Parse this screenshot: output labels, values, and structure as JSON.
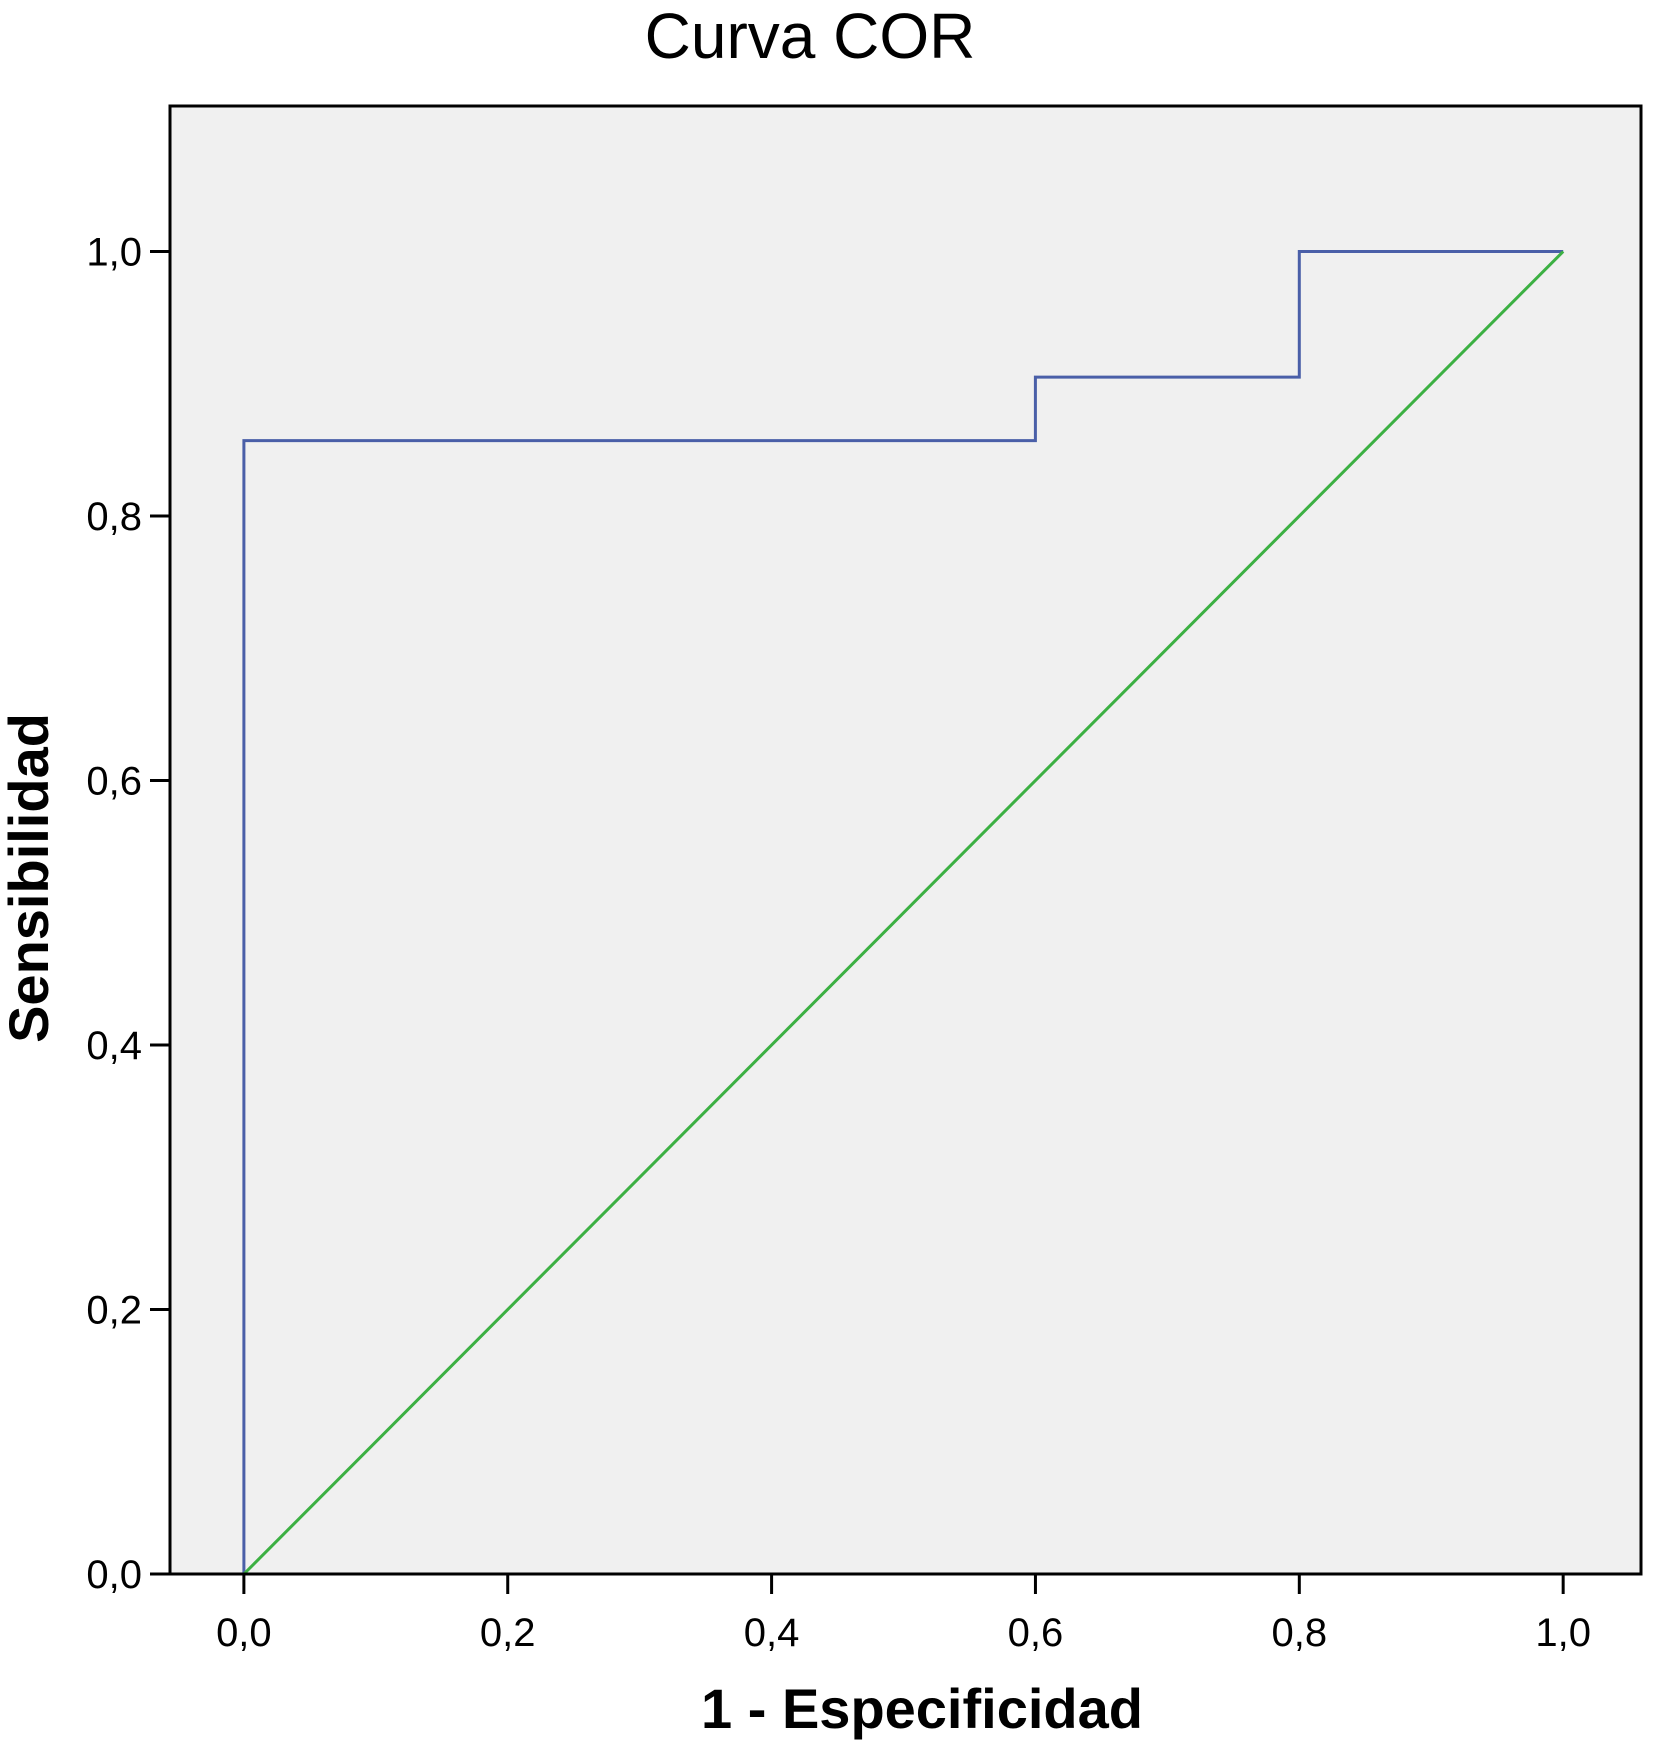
{
  "chart_data": {
    "type": "line",
    "title": "Curva COR",
    "xlabel": "1 - Especificidad",
    "ylabel": "Sensibilidad",
    "xlim": [
      -0.056,
      1.059
    ],
    "ylim": [
      0,
      1.11
    ],
    "x_ticks": [
      {
        "value": 0.0,
        "label": "0,0"
      },
      {
        "value": 0.2,
        "label": "0,2"
      },
      {
        "value": 0.4,
        "label": "0,4"
      },
      {
        "value": 0.6,
        "label": "0,6"
      },
      {
        "value": 0.8,
        "label": "0,8"
      },
      {
        "value": 1.0,
        "label": "1,0"
      }
    ],
    "y_ticks": [
      {
        "value": 0.0,
        "label": "0,0"
      },
      {
        "value": 0.2,
        "label": "0,2"
      },
      {
        "value": 0.4,
        "label": "0,4"
      },
      {
        "value": 0.6,
        "label": "0,6"
      },
      {
        "value": 0.8,
        "label": "0,8"
      },
      {
        "value": 1.0,
        "label": "1,0"
      }
    ],
    "grid": false,
    "background": "#f0f0f0",
    "series": [
      {
        "color": "#4a5fa8",
        "step": true,
        "points": [
          [
            0.0,
            0.0
          ],
          [
            0.0,
            0.857
          ],
          [
            0.6,
            0.857
          ],
          [
            0.6,
            0.905
          ],
          [
            0.8,
            0.905
          ],
          [
            0.8,
            1.0
          ],
          [
            1.0,
            1.0
          ]
        ]
      },
      {
        "color": "#3cb043",
        "step": false,
        "points": [
          [
            0.0,
            0.0
          ],
          [
            1.0,
            1.0
          ]
        ]
      }
    ]
  }
}
